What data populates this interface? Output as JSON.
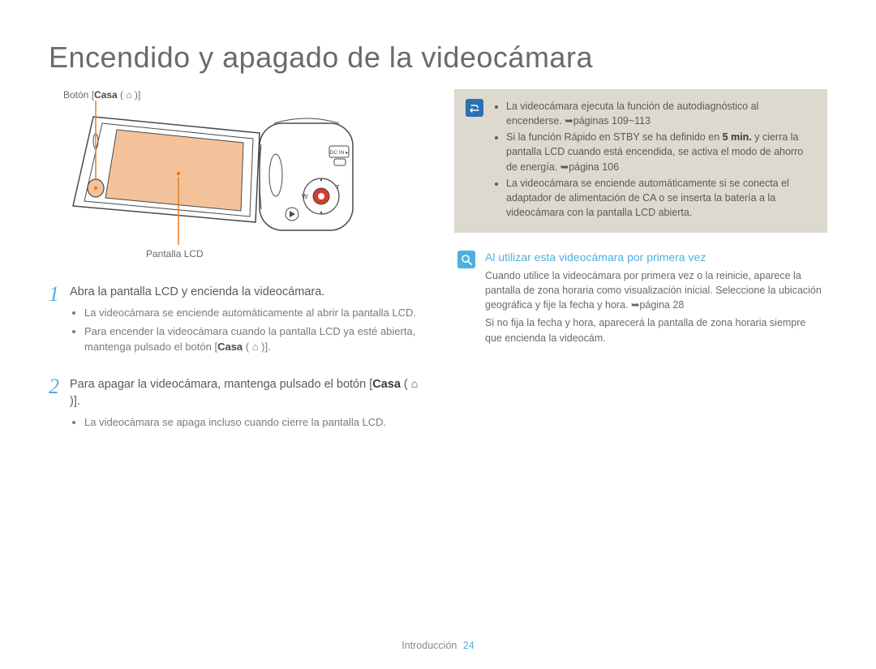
{
  "title": "Encendido y apagado de la videocámara",
  "illustration": {
    "label_button_prefix": "Botón [",
    "label_button_bold": "Casa",
    "label_button_suffix": " ( ⌂ )]",
    "label_lcd": "Pantalla LCD",
    "colors": {
      "lcd_fill": "#f4c29a",
      "button_fill": "#f4c29a",
      "record_button": "#d83a2f",
      "pointer_line": "#e87b1f",
      "outline": "#4a4a4a"
    }
  },
  "steps": [
    {
      "num": "1",
      "head": "Abra la pantalla LCD y encienda la videocámara.",
      "bullets": [
        "La videocámara se enciende automáticamente al abrir la pantalla LCD.",
        "Para encender la videocámara cuando la pantalla LCD ya esté abierta, mantenga pulsado el botón [<b>Casa</b> ( ⌂ )]."
      ]
    },
    {
      "num": "2",
      "head": "Para apagar la videocámara, mantenga pulsado el botón [<b>Casa</b> ( ⌂ )].",
      "bullets": [
        "La videocámara se apaga incluso cuando cierre la pantalla LCD."
      ]
    }
  ],
  "note_box": {
    "bg_color": "#dcd9ce",
    "icon_bg": "#2d6fb3",
    "bullets": [
      "La videocámara ejecuta la función de autodiagnóstico al encenderse. ➥páginas 109~113",
      "Si la función Rápido en STBY se ha definido en <b>5 min.</b> y cierra la pantalla LCD cuando está encendida, se activa el modo de ahorro de energía. ➥página 106",
      "La videocámara se enciende automáticamente si se conecta el adaptador de alimentación de CA o se inserta la batería a la videocámara con la pantalla LCD abierta."
    ]
  },
  "first_time": {
    "icon_bg": "#4fb0e0",
    "title": "Al utilizar esta videocámara por primera vez",
    "paragraphs": [
      "Cuando utilice la videocámara por primera vez o la reinicie, aparece la pantalla de zona horaria como visualización inicial. Seleccione la ubicación geográfica y fije la fecha y hora. ➥página 28",
      "Si no fija la fecha y hora, aparecerá la pantalla de zona horaria siempre que encienda la videocám."
    ]
  },
  "footer": {
    "section": "Introducción",
    "page": "24"
  }
}
